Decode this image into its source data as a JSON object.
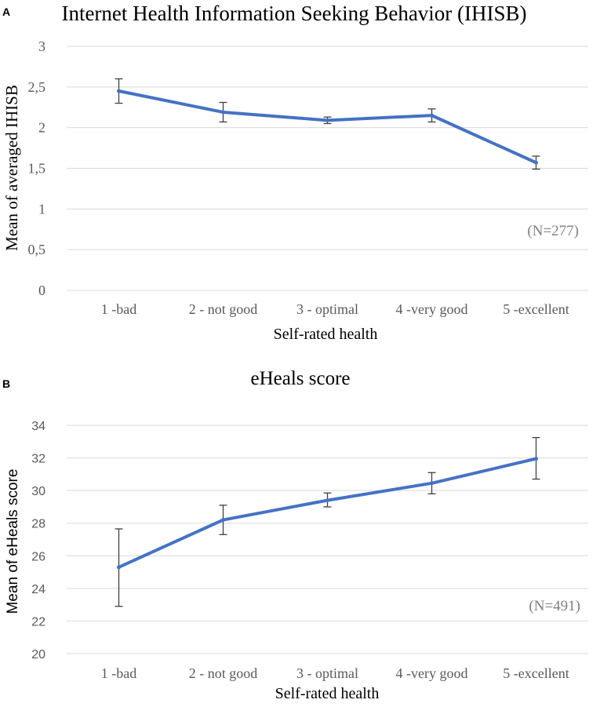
{
  "chart_data": [
    {
      "panel": "A",
      "type": "line",
      "title": "Internet Health Information Seeking Behavior (IHISB)",
      "xlabel": "Self-rated health",
      "ylabel": "Mean of averaged IHISB",
      "categories": [
        "1 -bad",
        "2 - not good",
        "3 - optimal",
        "4 -very good",
        "5 -excellent"
      ],
      "values": [
        2.45,
        2.19,
        2.09,
        2.15,
        1.57
      ],
      "error_low": [
        2.3,
        2.07,
        2.05,
        2.07,
        1.49
      ],
      "error_high": [
        2.6,
        2.31,
        2.13,
        2.23,
        1.65
      ],
      "ylim": [
        0,
        3
      ],
      "yticks": [
        0,
        0.5,
        1,
        1.5,
        2,
        2.5,
        3
      ],
      "ytick_labels": [
        "0",
        "0,5",
        "1",
        "1,5",
        "2",
        "2,5",
        "3"
      ],
      "annotation": "(N=277)",
      "series_color": "#4472c4"
    },
    {
      "panel": "B",
      "type": "line",
      "title": "eHeals score",
      "xlabel": "Self-rated health",
      "ylabel": "Mean of eHeals score",
      "categories": [
        "1 -bad",
        "2 - not good",
        "3 - optimal",
        "4 -very good",
        "5 -excellent"
      ],
      "values": [
        25.3,
        28.2,
        29.4,
        30.45,
        31.95
      ],
      "error_low": [
        22.9,
        27.3,
        29.0,
        29.8,
        30.7
      ],
      "error_high": [
        27.65,
        29.1,
        29.85,
        31.1,
        33.25
      ],
      "ylim": [
        20,
        34
      ],
      "yticks": [
        20,
        22,
        24,
        26,
        28,
        30,
        32,
        34
      ],
      "ytick_labels": [
        "20",
        "22",
        "24",
        "26",
        "28",
        "30",
        "32",
        "34"
      ],
      "annotation": "(N=491)",
      "series_color": "#4472c4"
    }
  ]
}
